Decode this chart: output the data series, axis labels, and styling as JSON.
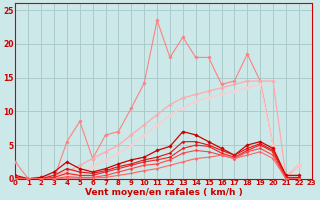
{
  "xlabel": "Vent moyen/en rafales ( km/h )",
  "bg_color": "#cce8e8",
  "grid_color": "#aacccc",
  "axis_color": "#cc0000",
  "ylim": [
    0,
    26
  ],
  "xlim": [
    0,
    23
  ],
  "yticks": [
    0,
    5,
    10,
    15,
    20,
    25
  ],
  "xticks": [
    0,
    1,
    2,
    3,
    4,
    5,
    6,
    7,
    8,
    9,
    10,
    11,
    12,
    13,
    14,
    15,
    16,
    17,
    18,
    19,
    20,
    21,
    22,
    23
  ],
  "lines": [
    {
      "x": [
        0,
        1,
        2,
        3,
        4,
        5,
        6,
        7,
        8,
        9,
        10,
        11,
        12,
        13,
        14,
        15,
        16,
        17,
        18,
        19,
        20,
        21,
        22
      ],
      "y": [
        2.5,
        0.0,
        0.2,
        0.0,
        5.5,
        8.5,
        3.0,
        6.5,
        7.0,
        10.5,
        14.2,
        23.5,
        18.0,
        21.0,
        18.0,
        18.0,
        14.0,
        14.5,
        18.5,
        14.5,
        5.0,
        0.0,
        2.0
      ],
      "color": "#ff8080",
      "lw": 0.8,
      "marker": "D",
      "ms": 1.8
    },
    {
      "x": [
        0,
        1,
        2,
        3,
        4,
        5,
        6,
        7,
        8,
        9,
        10,
        11,
        12,
        13,
        14,
        15,
        16,
        17,
        18,
        19,
        20,
        21,
        22
      ],
      "y": [
        0.0,
        0.0,
        0.3,
        0.5,
        1.0,
        2.0,
        3.0,
        4.0,
        5.0,
        6.5,
        8.0,
        9.5,
        11.0,
        12.0,
        12.5,
        13.0,
        13.5,
        14.0,
        14.5,
        14.5,
        14.5,
        0.3,
        2.0
      ],
      "color": "#ffaaaa",
      "lw": 0.9,
      "marker": "D",
      "ms": 1.8
    },
    {
      "x": [
        0,
        1,
        2,
        3,
        4,
        5,
        6,
        7,
        8,
        9,
        10,
        11,
        12,
        13,
        14,
        15,
        16,
        17,
        18,
        19,
        20,
        21,
        22
      ],
      "y": [
        0.0,
        0.0,
        0.0,
        0.2,
        0.5,
        1.0,
        1.8,
        2.8,
        3.8,
        5.0,
        6.5,
        8.0,
        9.5,
        10.5,
        11.5,
        12.0,
        12.5,
        13.0,
        13.5,
        14.0,
        5.0,
        0.0,
        2.0
      ],
      "color": "#ffcccc",
      "lw": 0.9,
      "marker": "D",
      "ms": 1.8
    },
    {
      "x": [
        0,
        1,
        2,
        3,
        4,
        5,
        6,
        7,
        8,
        9,
        10,
        11,
        12,
        13,
        14,
        15,
        16,
        17,
        18,
        19,
        20,
        21,
        22
      ],
      "y": [
        0.5,
        0.0,
        0.2,
        1.0,
        2.5,
        1.5,
        1.0,
        1.5,
        2.2,
        2.8,
        3.2,
        4.2,
        4.8,
        7.0,
        6.5,
        5.5,
        4.5,
        3.5,
        5.0,
        5.5,
        4.5,
        0.5,
        0.5
      ],
      "color": "#cc0000",
      "lw": 0.9,
      "marker": "D",
      "ms": 1.8
    },
    {
      "x": [
        0,
        1,
        2,
        3,
        4,
        5,
        6,
        7,
        8,
        9,
        10,
        11,
        12,
        13,
        14,
        15,
        16,
        17,
        18,
        19,
        20,
        21,
        22
      ],
      "y": [
        0.2,
        0.0,
        0.0,
        0.5,
        1.5,
        1.0,
        0.8,
        1.2,
        1.8,
        2.2,
        2.8,
        3.2,
        3.8,
        5.5,
        5.5,
        5.0,
        4.2,
        3.5,
        4.5,
        5.2,
        4.2,
        0.2,
        0.2
      ],
      "color": "#dd1111",
      "lw": 0.8,
      "marker": "D",
      "ms": 1.5
    },
    {
      "x": [
        0,
        1,
        2,
        3,
        4,
        5,
        6,
        7,
        8,
        9,
        10,
        11,
        12,
        13,
        14,
        15,
        16,
        17,
        18,
        19,
        20,
        21,
        22
      ],
      "y": [
        0.0,
        0.0,
        0.0,
        0.2,
        0.8,
        0.5,
        0.5,
        1.0,
        1.5,
        2.0,
        2.5,
        2.8,
        3.2,
        4.5,
        5.0,
        4.8,
        3.8,
        3.2,
        4.2,
        5.0,
        4.0,
        0.0,
        0.0
      ],
      "color": "#ee2222",
      "lw": 0.8,
      "marker": "D",
      "ms": 1.5
    },
    {
      "x": [
        0,
        1,
        2,
        3,
        4,
        5,
        6,
        7,
        8,
        9,
        10,
        11,
        12,
        13,
        14,
        15,
        16,
        17,
        18,
        19,
        20,
        21,
        22
      ],
      "y": [
        0.0,
        0.0,
        0.0,
        0.0,
        0.3,
        0.2,
        0.2,
        0.5,
        1.0,
        1.5,
        2.0,
        2.2,
        2.8,
        3.8,
        4.2,
        4.0,
        3.5,
        3.0,
        4.0,
        4.5,
        3.5,
        0.0,
        0.0
      ],
      "color": "#ff4444",
      "lw": 0.8,
      "marker": "D",
      "ms": 1.5
    },
    {
      "x": [
        0,
        1,
        2,
        3,
        4,
        5,
        6,
        7,
        8,
        9,
        10,
        11,
        12,
        13,
        14,
        15,
        16,
        17,
        18,
        19,
        20,
        21,
        22
      ],
      "y": [
        0.0,
        0.0,
        0.0,
        0.0,
        0.1,
        0.1,
        0.1,
        0.2,
        0.5,
        0.8,
        1.2,
        1.5,
        2.0,
        2.5,
        3.0,
        3.2,
        3.5,
        3.0,
        3.5,
        4.0,
        3.0,
        0.0,
        0.0
      ],
      "color": "#ff6666",
      "lw": 0.8,
      "marker": "D",
      "ms": 1.2
    }
  ]
}
